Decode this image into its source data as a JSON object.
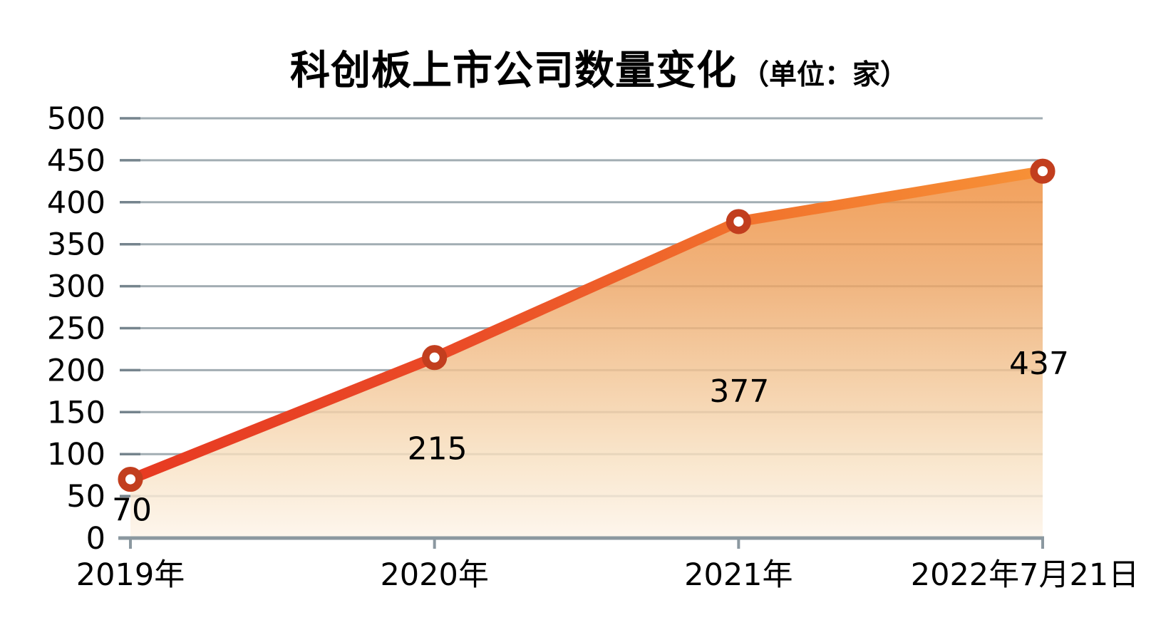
{
  "chart_data": {
    "type": "area",
    "title": "科创板上市公司数量变化",
    "title_unit": "（单位：家）",
    "categories": [
      "2019年",
      "2020年",
      "2021年",
      "2022年7月21日"
    ],
    "values": [
      70,
      215,
      377,
      437
    ],
    "data_labels": [
      "70",
      "215",
      "377",
      "437"
    ],
    "series_name": "科创板上市公司数量",
    "y_ticks": [
      0,
      50,
      100,
      150,
      200,
      250,
      300,
      350,
      400,
      450,
      500
    ],
    "ylim": [
      0,
      500
    ],
    "grid": "horizontal",
    "legend": "none",
    "colors": {
      "background": "#ffffff",
      "text": "#000000",
      "axis": "#8b98a0",
      "gridline": "#a2adb3",
      "gridline_tick": "#75848d",
      "line_gradient": [
        "#e73a22",
        "#ea4a27",
        "#f2752d",
        "#f79137"
      ],
      "area_gradient": [
        "#ef8b37",
        "#eda463",
        "#f2c493",
        "#f8e2c4",
        "#fdf4e9"
      ],
      "marker_ring": "#c23e1e",
      "marker_fill": "#ffffff"
    }
  }
}
